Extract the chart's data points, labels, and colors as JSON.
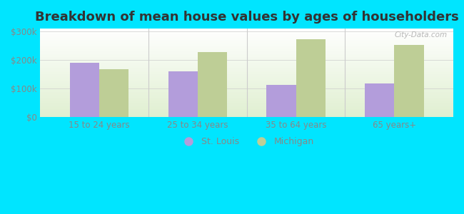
{
  "title": "Breakdown of mean house values by ages of householders",
  "categories": [
    "15 to 24 years",
    "25 to 34 years",
    "35 to 64 years",
    "65 years+"
  ],
  "st_louis": [
    190000,
    160000,
    112000,
    118000
  ],
  "michigan": [
    168000,
    228000,
    272000,
    252000
  ],
  "st_louis_color": "#b39ddb",
  "michigan_color": "#bece96",
  "ylim": [
    0,
    310000
  ],
  "yticks": [
    0,
    100000,
    200000,
    300000
  ],
  "ytick_labels": [
    "$0",
    "$100k",
    "$200k",
    "$300k"
  ],
  "figure_bg_color": "#00e5ff",
  "title_fontsize": 13,
  "legend_labels": [
    "St. Louis",
    "Michigan"
  ],
  "bar_width": 0.3,
  "watermark": "City-Data.com",
  "tick_color": "#888888",
  "separator_color": "#cccccc"
}
